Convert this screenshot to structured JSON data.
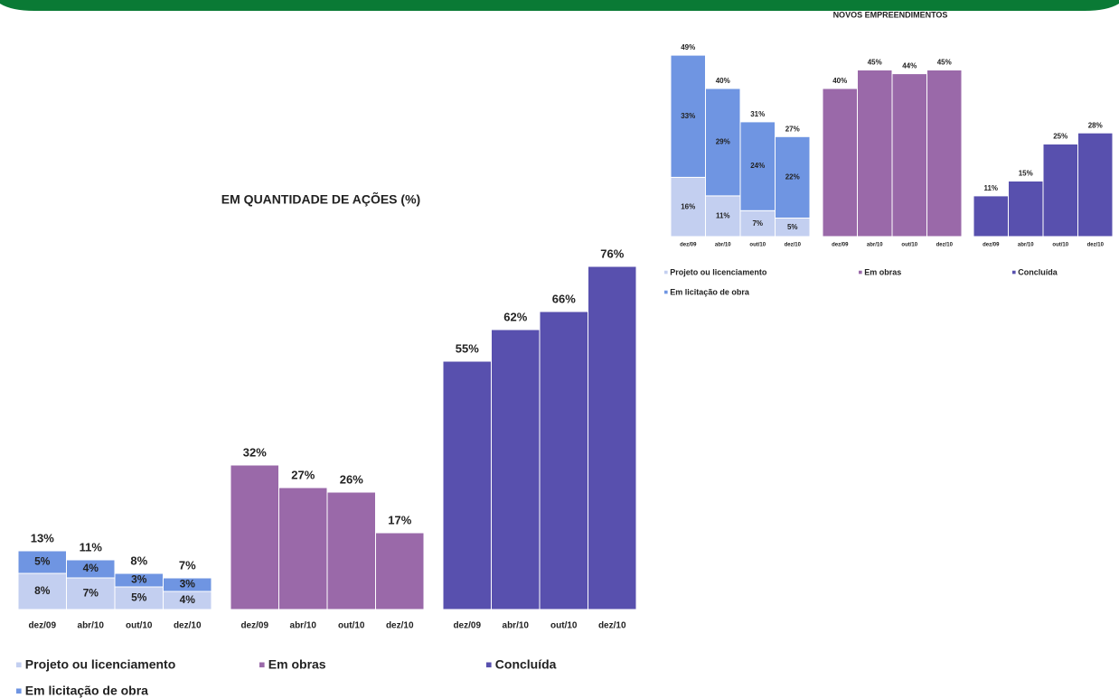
{
  "chart_data": [
    {
      "type": "bar",
      "title": "EM QUANTIDADE DE AÇÕES (%)",
      "categories": [
        "dez/09",
        "abr/10",
        "out/10",
        "dez/10"
      ],
      "ylim": [
        0,
        80
      ],
      "panels": [
        {
          "series": [
            {
              "name": "Projeto ou licenciamento",
              "color": "#c3cff0",
              "values": [
                8,
                7,
                5,
                4
              ],
              "value_labels": [
                "8%",
                "7%",
                "5%",
                "4%"
              ]
            },
            {
              "name": "Em licitação de obra",
              "color": "#6f95e2",
              "values": [
                5,
                4,
                3,
                3
              ],
              "value_labels": [
                "5%",
                "4%",
                "3%",
                "3%"
              ]
            }
          ],
          "totals": {
            "values": [
              13,
              11,
              8,
              7
            ],
            "value_labels": [
              "13%",
              "11%",
              "8%",
              "7%"
            ]
          }
        },
        {
          "series": [
            {
              "name": "Em obras",
              "color": "#9a69a9",
              "values": [
                32,
                27,
                26,
                17
              ],
              "value_labels": [
                "32%",
                "27%",
                "26%",
                "17%"
              ]
            }
          ]
        },
        {
          "series": [
            {
              "name": "Concluída",
              "color": "#5850ae",
              "values": [
                55,
                62,
                66,
                76
              ],
              "value_labels": [
                "55%",
                "62%",
                "66%",
                "76%"
              ]
            }
          ]
        }
      ]
    },
    {
      "type": "bar",
      "title": "NOVOS EMPREENDIMENTOS",
      "categories": [
        "dez/09",
        "abr/10",
        "out/10",
        "dez/10"
      ],
      "ylim": [
        0,
        50
      ],
      "panels": [
        {
          "series": [
            {
              "name": "Projeto ou licenciamento",
              "color": "#c3cff0",
              "values": [
                16,
                11,
                7,
                5
              ],
              "value_labels": [
                "16%",
                "11%",
                "7%",
                "5%"
              ]
            },
            {
              "name": "Em licitação de obra",
              "color": "#6f95e2",
              "values": [
                33,
                29,
                24,
                22
              ],
              "value_labels": [
                "33%",
                "29%",
                "24%",
                "22%"
              ]
            }
          ],
          "totals": {
            "values": [
              49,
              40,
              31,
              27
            ],
            "value_labels": [
              "49%",
              "40%",
              "31%",
              "27%"
            ]
          }
        },
        {
          "series": [
            {
              "name": "Em obras",
              "color": "#9a69a9",
              "values": [
                40,
                45,
                44,
                45
              ],
              "value_labels": [
                "40%",
                "45%",
                "44%",
                "45%"
              ]
            }
          ]
        },
        {
          "series": [
            {
              "name": "Concluída",
              "color": "#5850ae",
              "values": [
                11,
                15,
                25,
                28
              ],
              "value_labels": [
                "11%",
                "15%",
                "25%",
                "28%"
              ]
            }
          ]
        }
      ]
    }
  ]
}
